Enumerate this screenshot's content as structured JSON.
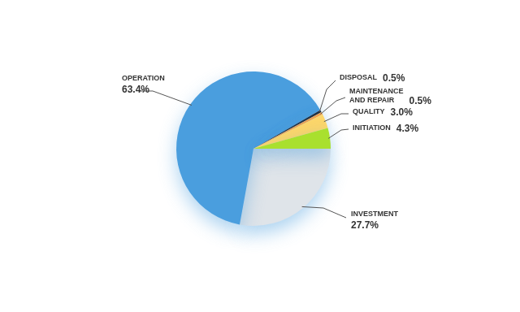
{
  "chart_data": {
    "type": "pie",
    "categories": [
      "INVESTMENT",
      "OPERATION",
      "DISPOSAL",
      "MAINTENANCE AND REPAIR",
      "QUALITY",
      "INITIATION"
    ],
    "values": [
      27.7,
      63.4,
      0.5,
      0.5,
      3.0,
      4.3
    ],
    "value_labels": [
      "27.7%",
      "63.4%",
      "0.5%",
      "0.5%",
      "3.0%",
      "4.3%"
    ],
    "colors": [
      "#dfe4e9",
      "#4a9ede",
      "#1f2d3d",
      "#f5a24a",
      "#fcd66a",
      "#a9e02e"
    ],
    "data_labels": true
  }
}
